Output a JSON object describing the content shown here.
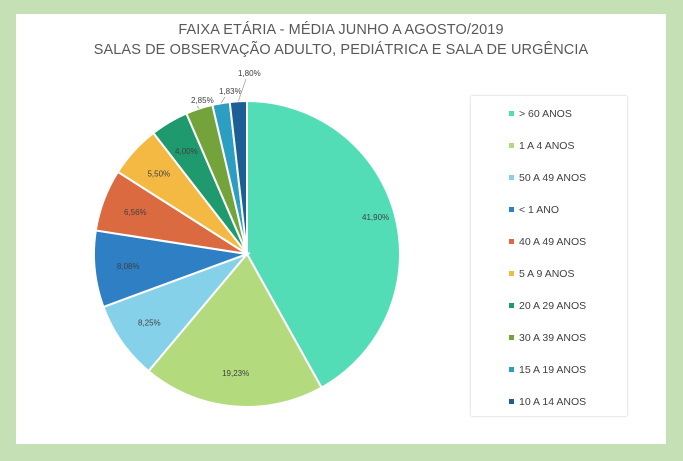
{
  "chart_data": {
    "type": "pie",
    "title": "FAIXA ETÁRIA - MÉDIA JUNHO A AGOSTO/2019",
    "subtitle": "SALAS DE OBSERVAÇÃO ADULTO, PEDIÁTRICA E SALA DE URGÊNCIA",
    "legend_position": "right",
    "slices": [
      {
        "label": "> 60 ANOS",
        "value": 41.9,
        "value_label": "41,90%",
        "color": "#53ddb7"
      },
      {
        "label": "1 A 4 ANOS",
        "value": 19.23,
        "value_label": "19,23%",
        "color": "#b3db7d"
      },
      {
        "label": "50 A 49 ANOS",
        "value": 8.25,
        "value_label": "8,25%",
        "color": "#86d1ea"
      },
      {
        "label": "< 1 ANO",
        "value": 8.08,
        "value_label": "8,08%",
        "color": "#2e7fc4"
      },
      {
        "label": "40 A 49 ANOS",
        "value": 6.56,
        "value_label": "6,56%",
        "color": "#dc6a40"
      },
      {
        "label": "5 A 9 ANOS",
        "value": 5.5,
        "value_label": "5,50%",
        "color": "#f4b942"
      },
      {
        "label": "20 A 29 ANOS",
        "value": 4.0,
        "value_label": "4,00%",
        "color": "#1e9a6e"
      },
      {
        "label": "30 A 39 ANOS",
        "value": 2.85,
        "value_label": "2,85%",
        "color": "#73a33a"
      },
      {
        "label": "15 A 19 ANOS",
        "value": 1.83,
        "value_label": "1,83%",
        "color": "#2c9ec2"
      },
      {
        "label": "10 A 14 ANOS",
        "value": 1.8,
        "value_label": "1,80%",
        "color": "#1d5f95"
      }
    ]
  }
}
